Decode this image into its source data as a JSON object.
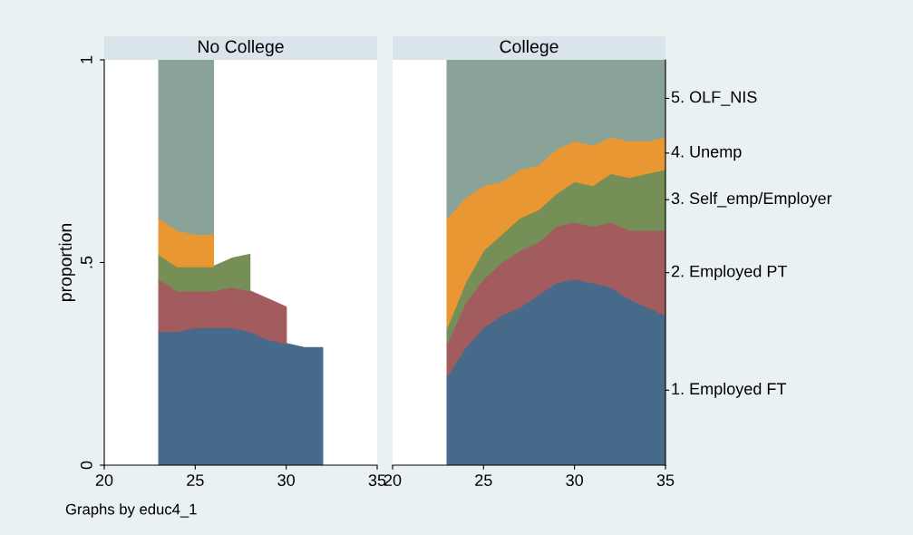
{
  "chart_data": [
    {
      "type": "area",
      "stacked": true,
      "title": "No College",
      "ylabel": "proportion",
      "x": [
        23,
        24,
        25,
        26,
        27,
        28,
        29,
        30,
        31,
        32
      ],
      "xlim": [
        20,
        35
      ],
      "xticks": [
        20,
        25,
        30,
        35
      ],
      "ylim": [
        0,
        1
      ],
      "yticks": [
        0,
        {
          "value": 0.5,
          "label": ".5"
        },
        1
      ],
      "grid": false,
      "legend": false,
      "annotations": [
        "Graphs by educ4_1"
      ],
      "series": [
        {
          "color": "#476a8a",
          "values": [
            0.33,
            0.33,
            0.34,
            0.34,
            0.34,
            0.33,
            0.31,
            0.3,
            0.29,
            0.29
          ]
        },
        {
          "color": "#a35c5e",
          "values": [
            0.13,
            0.1,
            0.09,
            0.09,
            0.1,
            0.1,
            0.1,
            0.09,
            null,
            null
          ]
        },
        {
          "color": "#768f56",
          "values": [
            0.06,
            0.06,
            0.06,
            0.06,
            0.07,
            0.09,
            null,
            null,
            null,
            null
          ]
        },
        {
          "color": "#e99733",
          "values": [
            0.09,
            0.09,
            0.08,
            0.08,
            null,
            null,
            null,
            null,
            null,
            null
          ]
        },
        {
          "color": "#8aa398",
          "values": [
            0.39,
            0.42,
            0.43,
            0.43,
            null,
            null,
            null,
            null,
            null,
            null
          ]
        }
      ]
    },
    {
      "type": "area",
      "stacked": true,
      "title": "College",
      "x": [
        23,
        24,
        25,
        26,
        27,
        28,
        29,
        30,
        31,
        32,
        33,
        34,
        35
      ],
      "xlim": [
        20,
        35
      ],
      "xticks": [
        20,
        25,
        30,
        35
      ],
      "ylim": [
        0,
        1
      ],
      "tick_labels": "x",
      "grid": false,
      "legend": false,
      "series": [
        {
          "name": "1. Employed FT",
          "color": "#476a8a",
          "values": [
            0.22,
            0.29,
            0.34,
            0.37,
            0.39,
            0.42,
            0.45,
            0.46,
            0.45,
            0.44,
            0.41,
            0.39,
            0.37
          ]
        },
        {
          "name": "2. Employed PT",
          "color": "#a35c5e",
          "values": [
            0.08,
            0.11,
            0.12,
            0.13,
            0.14,
            0.13,
            0.14,
            0.14,
            0.14,
            0.16,
            0.17,
            0.19,
            0.21
          ]
        },
        {
          "name": "3. Self_emp/Employer",
          "color": "#768f56",
          "values": [
            0.04,
            0.05,
            0.07,
            0.07,
            0.08,
            0.08,
            0.08,
            0.1,
            0.1,
            0.12,
            0.13,
            0.14,
            0.15
          ]
        },
        {
          "name": "4. Unemp",
          "color": "#e99733",
          "values": [
            0.27,
            0.21,
            0.16,
            0.13,
            0.12,
            0.11,
            0.11,
            0.1,
            0.1,
            0.09,
            0.09,
            0.08,
            0.08
          ]
        },
        {
          "name": "5. OLF_NIS",
          "color": "#8aa398",
          "values": [
            0.39,
            0.34,
            0.31,
            0.3,
            0.27,
            0.26,
            0.22,
            0.2,
            0.21,
            0.19,
            0.2,
            0.2,
            0.19
          ]
        }
      ]
    }
  ]
}
